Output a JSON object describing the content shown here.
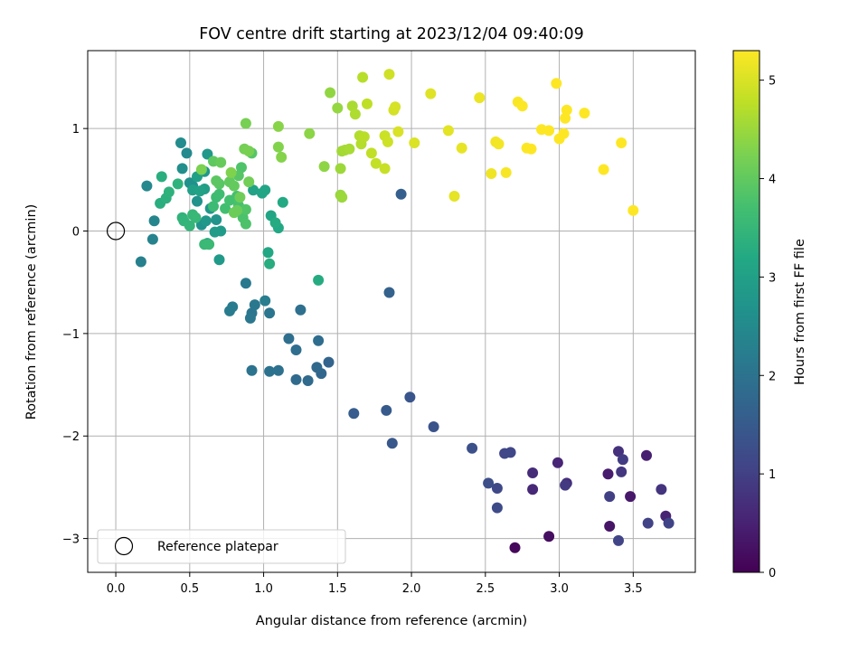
{
  "chart_data": {
    "type": "scatter",
    "title": "FOV centre drift starting at 2023/12/04 09:40:09",
    "xlabel": "Angular distance from reference (arcmin)",
    "ylabel": "Rotation from reference (arcmin)",
    "xlim": [
      -0.19,
      3.92
    ],
    "ylim": [
      -3.33,
      1.76
    ],
    "xticks": [
      0.0,
      0.5,
      1.0,
      1.5,
      2.0,
      2.5,
      3.0,
      3.5
    ],
    "xtick_labels": [
      "0.0",
      "0.5",
      "1.0",
      "1.5",
      "2.0",
      "2.5",
      "3.0",
      "3.5"
    ],
    "yticks": [
      -3,
      -2,
      -1,
      0,
      1
    ],
    "ytick_labels": [
      "−3",
      "−2",
      "−1",
      "0",
      "1"
    ],
    "grid": true,
    "colorbar": {
      "label": "Hours from first FF file",
      "colormap": "viridis",
      "range": [
        0,
        5.3
      ],
      "ticks": [
        0,
        1,
        2,
        3,
        4,
        5
      ],
      "tick_labels": [
        "0",
        "1",
        "2",
        "3",
        "4",
        "5"
      ]
    },
    "legend": {
      "position": "bottom-left",
      "entries": [
        "Reference platepar"
      ]
    },
    "reference_point": {
      "x": 0.0,
      "y": 0.0,
      "label": "Reference platepar"
    },
    "points": [
      [
        2.7,
        -3.09,
        0.1
      ],
      [
        2.93,
        -2.98,
        0.2
      ],
      [
        3.34,
        -2.88,
        0.3
      ],
      [
        3.48,
        -2.59,
        0.35
      ],
      [
        3.33,
        -2.37,
        0.4
      ],
      [
        3.59,
        -2.19,
        0.45
      ],
      [
        3.72,
        -2.78,
        0.5
      ],
      [
        2.99,
        -2.26,
        0.55
      ],
      [
        2.82,
        -2.52,
        0.6
      ],
      [
        2.82,
        -2.36,
        0.65
      ],
      [
        3.05,
        -2.46,
        0.7
      ],
      [
        3.4,
        -2.15,
        0.75
      ],
      [
        3.69,
        -2.52,
        0.8
      ],
      [
        3.42,
        -2.35,
        0.85
      ],
      [
        3.04,
        -2.48,
        0.9
      ],
      [
        3.43,
        -2.23,
        0.95
      ],
      [
        3.34,
        -2.59,
        1.0
      ],
      [
        3.6,
        -2.85,
        1.02
      ],
      [
        3.74,
        -2.85,
        1.05
      ],
      [
        3.4,
        -3.02,
        1.08
      ],
      [
        2.63,
        -2.17,
        1.1
      ],
      [
        2.67,
        -2.16,
        1.12
      ],
      [
        2.58,
        -2.51,
        1.15
      ],
      [
        2.58,
        -2.7,
        1.2
      ],
      [
        2.52,
        -2.46,
        1.25
      ],
      [
        2.41,
        -2.12,
        1.3
      ],
      [
        2.15,
        -1.91,
        1.35
      ],
      [
        1.99,
        -1.62,
        1.4
      ],
      [
        1.87,
        -2.07,
        1.45
      ],
      [
        1.83,
        -1.75,
        1.5
      ],
      [
        1.61,
        -1.78,
        1.55
      ],
      [
        1.93,
        0.36,
        1.6
      ],
      [
        1.85,
        -0.6,
        1.65
      ],
      [
        1.44,
        -1.28,
        1.7
      ],
      [
        1.39,
        -1.39,
        1.75
      ],
      [
        1.36,
        -1.33,
        1.8
      ],
      [
        1.3,
        -1.46,
        1.82
      ],
      [
        1.22,
        -1.45,
        1.85
      ],
      [
        1.37,
        -1.07,
        1.88
      ],
      [
        1.22,
        -1.16,
        1.9
      ],
      [
        1.17,
        -1.05,
        1.92
      ],
      [
        1.25,
        -0.77,
        1.95
      ],
      [
        1.1,
        -1.36,
        1.97
      ],
      [
        1.04,
        -1.37,
        2.0
      ],
      [
        0.92,
        -1.36,
        2.02
      ],
      [
        1.04,
        -0.8,
        2.05
      ],
      [
        0.92,
        -0.8,
        2.08
      ],
      [
        0.91,
        -0.85,
        2.1
      ],
      [
        0.94,
        -0.72,
        2.12
      ],
      [
        0.88,
        -0.51,
        2.15
      ],
      [
        0.79,
        -0.74,
        2.18
      ],
      [
        0.77,
        -0.78,
        2.2
      ],
      [
        1.01,
        -0.68,
        2.25
      ],
      [
        0.17,
        -0.3,
        2.3
      ],
      [
        0.25,
        -0.08,
        2.35
      ],
      [
        0.26,
        0.1,
        2.4
      ],
      [
        0.21,
        0.44,
        2.45
      ],
      [
        0.48,
        0.76,
        2.5
      ],
      [
        0.44,
        0.86,
        2.55
      ],
      [
        0.45,
        0.61,
        2.6
      ],
      [
        0.5,
        0.47,
        2.62
      ],
      [
        0.52,
        0.44,
        2.65
      ],
      [
        0.55,
        0.29,
        2.68
      ],
      [
        0.58,
        0.06,
        2.7
      ],
      [
        0.68,
        0.11,
        2.72
      ],
      [
        0.64,
        0.22,
        2.75
      ],
      [
        0.6,
        0.58,
        2.78
      ],
      [
        0.62,
        0.75,
        2.8
      ],
      [
        0.61,
        0.1,
        2.82
      ],
      [
        0.7,
        -0.28,
        2.85
      ],
      [
        0.71,
        0.0,
        2.88
      ],
      [
        0.67,
        -0.01,
        2.9
      ],
      [
        0.62,
        -0.12,
        2.92
      ],
      [
        0.6,
        0.41,
        2.95
      ],
      [
        0.55,
        0.53,
        2.97
      ],
      [
        0.52,
        0.4,
        3.0
      ],
      [
        0.57,
        0.39,
        3.02
      ],
      [
        0.93,
        0.4,
        3.05
      ],
      [
        0.99,
        0.37,
        3.08
      ],
      [
        1.01,
        0.4,
        3.1
      ],
      [
        1.05,
        0.15,
        3.12
      ],
      [
        1.03,
        -0.21,
        3.15
      ],
      [
        1.1,
        0.03,
        3.18
      ],
      [
        1.13,
        0.28,
        3.2
      ],
      [
        1.08,
        0.08,
        3.22
      ],
      [
        1.37,
        -0.48,
        3.25
      ],
      [
        1.04,
        -0.32,
        3.28
      ],
      [
        0.3,
        0.27,
        3.3
      ],
      [
        0.31,
        0.53,
        3.32
      ],
      [
        0.34,
        0.32,
        3.35
      ],
      [
        0.36,
        0.38,
        3.38
      ],
      [
        0.42,
        0.46,
        3.4
      ],
      [
        0.45,
        0.13,
        3.42
      ],
      [
        0.46,
        0.1,
        3.45
      ],
      [
        0.5,
        0.05,
        3.48
      ],
      [
        0.52,
        0.16,
        3.5
      ],
      [
        0.54,
        0.13,
        3.52
      ],
      [
        0.6,
        -0.13,
        3.55
      ],
      [
        0.63,
        -0.13,
        3.58
      ],
      [
        0.66,
        0.24,
        3.6
      ],
      [
        0.68,
        0.33,
        3.62
      ],
      [
        0.7,
        0.36,
        3.65
      ],
      [
        0.74,
        0.22,
        3.68
      ],
      [
        0.77,
        0.3,
        3.7
      ],
      [
        0.82,
        0.34,
        3.72
      ],
      [
        0.83,
        0.25,
        3.75
      ],
      [
        0.86,
        0.13,
        3.78
      ],
      [
        0.88,
        0.07,
        3.8
      ],
      [
        0.85,
        0.62,
        3.82
      ],
      [
        0.88,
        0.21,
        3.85
      ],
      [
        0.92,
        0.76,
        3.88
      ],
      [
        0.83,
        0.54,
        3.9
      ],
      [
        0.7,
        0.46,
        3.92
      ],
      [
        0.68,
        0.49,
        3.95
      ],
      [
        0.66,
        0.68,
        3.97
      ],
      [
        0.77,
        0.48,
        4.0
      ],
      [
        0.8,
        0.44,
        4.02
      ],
      [
        0.71,
        0.67,
        4.05
      ],
      [
        0.82,
        0.2,
        4.08
      ],
      [
        0.8,
        0.18,
        4.1
      ],
      [
        0.84,
        0.33,
        4.12
      ],
      [
        0.9,
        0.48,
        4.15
      ],
      [
        0.87,
        0.8,
        4.18
      ],
      [
        0.88,
        1.05,
        4.2
      ],
      [
        0.9,
        0.78,
        4.22
      ],
      [
        0.58,
        0.6,
        4.25
      ],
      [
        0.78,
        0.57,
        4.28
      ],
      [
        1.1,
        0.82,
        4.3
      ],
      [
        1.12,
        0.72,
        4.32
      ],
      [
        1.1,
        1.02,
        4.35
      ],
      [
        1.31,
        0.95,
        4.38
      ],
      [
        1.41,
        0.63,
        4.4
      ],
      [
        1.45,
        1.35,
        4.42
      ],
      [
        1.5,
        1.2,
        4.45
      ],
      [
        1.52,
        0.35,
        4.48
      ],
      [
        1.53,
        0.33,
        4.5
      ],
      [
        1.52,
        0.61,
        4.52
      ],
      [
        1.53,
        0.78,
        4.55
      ],
      [
        1.55,
        0.79,
        4.58
      ],
      [
        1.58,
        0.8,
        4.6
      ],
      [
        1.6,
        1.22,
        4.62
      ],
      [
        1.62,
        1.14,
        4.65
      ],
      [
        1.65,
        0.93,
        4.68
      ],
      [
        1.66,
        0.85,
        4.7
      ],
      [
        1.67,
        1.5,
        4.72
      ],
      [
        1.68,
        0.92,
        4.75
      ],
      [
        1.7,
        1.24,
        4.78
      ],
      [
        1.73,
        0.76,
        4.8
      ],
      [
        1.76,
        0.66,
        4.82
      ],
      [
        1.82,
        0.61,
        4.85
      ],
      [
        1.82,
        0.93,
        4.88
      ],
      [
        1.84,
        0.87,
        4.9
      ],
      [
        1.85,
        1.53,
        4.92
      ],
      [
        1.88,
        1.18,
        4.95
      ],
      [
        1.89,
        1.21,
        4.97
      ],
      [
        1.91,
        0.97,
        5.0
      ],
      [
        2.02,
        0.86,
        5.02
      ],
      [
        2.13,
        1.34,
        5.05
      ],
      [
        2.25,
        0.98,
        5.08
      ],
      [
        2.29,
        0.34,
        5.1
      ],
      [
        2.34,
        0.81,
        5.12
      ],
      [
        2.46,
        1.3,
        5.15
      ],
      [
        2.54,
        0.56,
        5.18
      ],
      [
        2.57,
        0.87,
        5.2
      ],
      [
        2.59,
        0.85,
        5.22
      ],
      [
        2.64,
        0.57,
        5.25
      ],
      [
        2.72,
        1.26,
        5.27
      ],
      [
        2.75,
        1.22,
        5.28
      ],
      [
        2.78,
        0.81,
        5.29
      ],
      [
        2.81,
        0.8,
        5.3
      ],
      [
        2.88,
        0.99,
        5.3
      ],
      [
        2.93,
        0.98,
        5.3
      ],
      [
        2.98,
        1.44,
        5.3
      ],
      [
        3.0,
        0.9,
        5.3
      ],
      [
        3.03,
        0.95,
        5.3
      ],
      [
        3.04,
        1.1,
        5.3
      ],
      [
        3.05,
        1.18,
        5.3
      ],
      [
        3.17,
        1.15,
        5.3
      ],
      [
        3.3,
        0.6,
        5.3
      ],
      [
        3.42,
        0.86,
        5.3
      ],
      [
        3.5,
        0.2,
        5.3
      ]
    ]
  }
}
